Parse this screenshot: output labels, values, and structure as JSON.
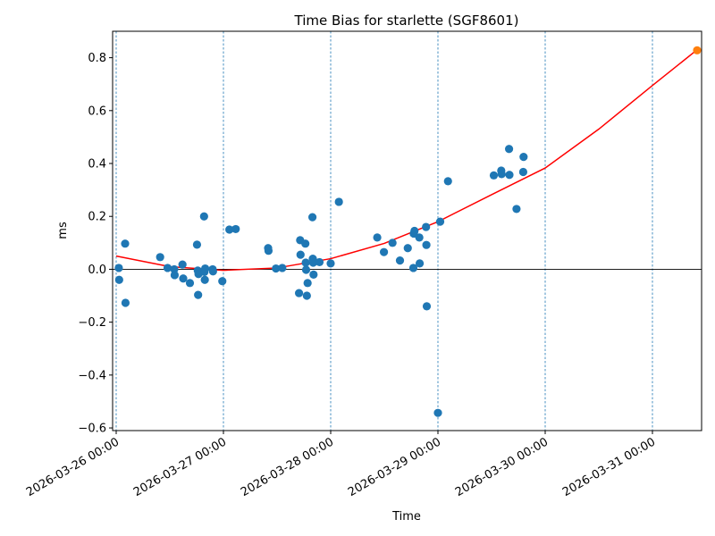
{
  "chart_data": {
    "type": "scatter",
    "title": "Time Bias for starlette (SGF8601)",
    "xlabel": "Time",
    "ylabel": "ms",
    "x_type": "datetime",
    "xlim": [
      "2026-03-26 00:00",
      "2026-03-31 10:00"
    ],
    "ylim": [
      -0.61,
      0.9
    ],
    "x_ticks": [
      "2026-03-26 00:00",
      "2026-03-27 00:00",
      "2026-03-28 00:00",
      "2026-03-29 00:00",
      "2026-03-30 00:00",
      "2026-03-31 00:00"
    ],
    "x_tick_labels": [
      "2026-03-26 00:00",
      "2026-03-27 00:00",
      "2026-03-28 00:00",
      "2026-03-29 00:00",
      "2026-03-30 00:00",
      "2026-03-31 00:00"
    ],
    "y_ticks": [
      -0.6,
      -0.4,
      -0.2,
      0.0,
      0.2,
      0.4,
      0.6,
      0.8
    ],
    "y_tick_labels": [
      "−0.6",
      "−0.4",
      "−0.2",
      "0.0",
      "0.2",
      "0.4",
      "0.6",
      "0.8"
    ],
    "vertical_gridlines": "dashed at each day",
    "zero_line": true,
    "series": [
      {
        "type": "scatter",
        "color": "#1f77b4",
        "points": [
          [
            "2026-03-26 00:35",
            0.005
          ],
          [
            "2026-03-26 00:40",
            -0.04
          ],
          [
            "2026-03-26 02:00",
            0.097
          ],
          [
            "2026-03-26 02:05",
            -0.127
          ],
          [
            "2026-03-26 09:50",
            0.046
          ],
          [
            "2026-03-26 11:30",
            0.005
          ],
          [
            "2026-03-26 13:00",
            0.0
          ],
          [
            "2026-03-26 13:05",
            -0.022
          ],
          [
            "2026-03-26 14:50",
            0.018
          ],
          [
            "2026-03-26 15:00",
            -0.035
          ],
          [
            "2026-03-26 16:30",
            -0.052
          ],
          [
            "2026-03-26 18:05",
            0.093
          ],
          [
            "2026-03-26 18:15",
            -0.005
          ],
          [
            "2026-03-26 18:20",
            -0.097
          ],
          [
            "2026-03-26 18:25",
            -0.018
          ],
          [
            "2026-03-26 19:40",
            0.2
          ],
          [
            "2026-03-26 19:45",
            -0.01
          ],
          [
            "2026-03-26 19:50",
            -0.04
          ],
          [
            "2026-03-26 19:55",
            0.003
          ],
          [
            "2026-03-26 21:35",
            0.0
          ],
          [
            "2026-03-26 21:40",
            -0.008
          ],
          [
            "2026-03-26 23:45",
            -0.045
          ],
          [
            "2026-03-27 01:20",
            0.15
          ],
          [
            "2026-03-27 02:45",
            0.152
          ],
          [
            "2026-03-27 10:00",
            0.08
          ],
          [
            "2026-03-27 10:05",
            0.07
          ],
          [
            "2026-03-27 11:45",
            0.003
          ],
          [
            "2026-03-27 13:10",
            0.005
          ],
          [
            "2026-03-27 16:55",
            -0.09
          ],
          [
            "2026-03-27 17:10",
            0.11
          ],
          [
            "2026-03-27 17:15",
            0.055
          ],
          [
            "2026-03-27 18:20",
            0.097
          ],
          [
            "2026-03-27 18:25",
            0.025
          ],
          [
            "2026-03-27 18:30",
            -0.002
          ],
          [
            "2026-03-27 18:40",
            -0.1
          ],
          [
            "2026-03-27 18:50",
            -0.052
          ],
          [
            "2026-03-27 19:55",
            0.197
          ],
          [
            "2026-03-27 20:00",
            0.04
          ],
          [
            "2026-03-27 20:05",
            0.025
          ],
          [
            "2026-03-27 20:10",
            -0.02
          ],
          [
            "2026-03-27 21:30",
            0.027
          ],
          [
            "2026-03-28 00:00",
            0.022
          ],
          [
            "2026-03-28 01:50",
            0.255
          ],
          [
            "2026-03-28 10:25",
            0.12
          ],
          [
            "2026-03-28 11:55",
            0.065
          ],
          [
            "2026-03-28 13:50",
            0.1
          ],
          [
            "2026-03-28 15:30",
            0.033
          ],
          [
            "2026-03-28 17:15",
            0.08
          ],
          [
            "2026-03-28 18:30",
            0.005
          ],
          [
            "2026-03-28 18:35",
            0.135
          ],
          [
            "2026-03-28 18:45",
            0.145
          ],
          [
            "2026-03-28 19:50",
            0.12
          ],
          [
            "2026-03-28 19:55",
            0.022
          ],
          [
            "2026-03-28 21:20",
            0.16
          ],
          [
            "2026-03-28 21:25",
            0.092
          ],
          [
            "2026-03-28 21:30",
            -0.14
          ],
          [
            "2026-03-29 00:00",
            -0.543
          ],
          [
            "2026-03-29 00:30",
            0.18
          ],
          [
            "2026-03-29 02:15",
            0.333
          ],
          [
            "2026-03-29 12:30",
            0.355
          ],
          [
            "2026-03-29 14:10",
            0.373
          ],
          [
            "2026-03-29 14:15",
            0.36
          ],
          [
            "2026-03-29 15:55",
            0.455
          ],
          [
            "2026-03-29 16:00",
            0.357
          ],
          [
            "2026-03-29 17:35",
            0.228
          ],
          [
            "2026-03-29 19:05",
            0.368
          ],
          [
            "2026-03-29 19:10",
            0.425
          ]
        ]
      },
      {
        "type": "line",
        "color": "#ff0000",
        "points": [
          [
            "2026-03-26 00:00",
            0.05
          ],
          [
            "2026-03-26 12:00",
            0.01
          ],
          [
            "2026-03-27 00:00",
            -0.004
          ],
          [
            "2026-03-27 12:00",
            0.005
          ],
          [
            "2026-03-28 00:00",
            0.04
          ],
          [
            "2026-03-28 12:00",
            0.098
          ],
          [
            "2026-03-29 00:00",
            0.18
          ],
          [
            "2026-03-29 12:00",
            0.282
          ],
          [
            "2026-03-30 00:00",
            0.383
          ],
          [
            "2026-03-30 12:00",
            0.53
          ],
          [
            "2026-03-31 00:00",
            0.695
          ],
          [
            "2026-03-31 10:00",
            0.83
          ]
        ]
      },
      {
        "type": "scatter",
        "color": "#ff7f0e",
        "points": [
          [
            "2026-03-31 10:00",
            0.828
          ]
        ]
      }
    ]
  }
}
